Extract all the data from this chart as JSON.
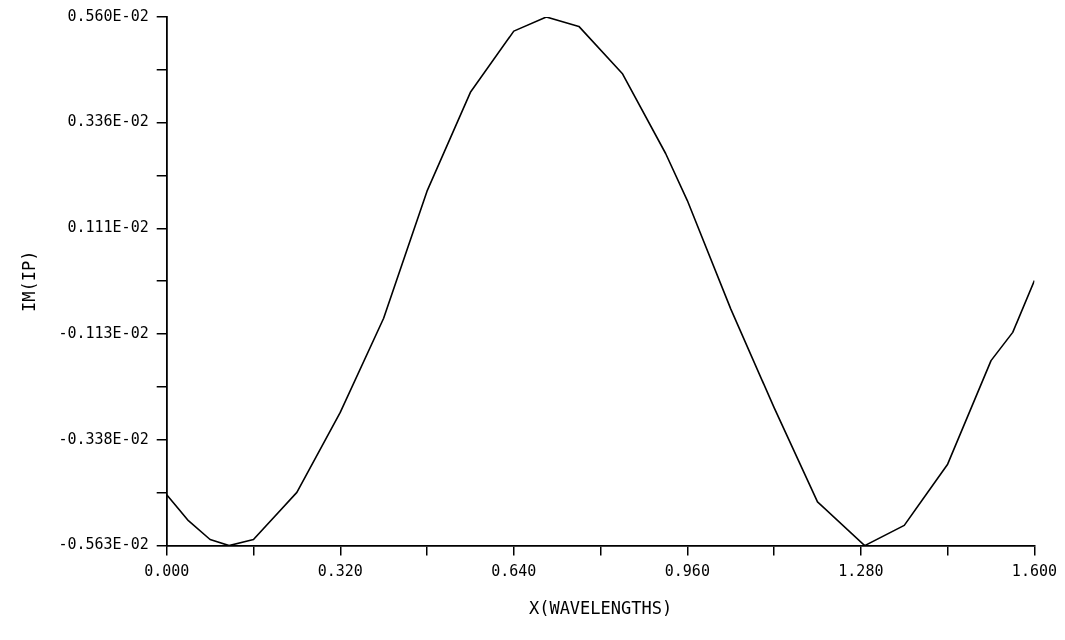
{
  "chart_data": {
    "type": "line",
    "xlabel": "X(WAVELENGTHS)",
    "ylabel": "IM(IP)",
    "x": [
      0,
      0.04,
      0.08,
      0.115,
      0.16,
      0.24,
      0.32,
      0.4,
      0.48,
      0.56,
      0.64,
      0.7,
      0.76,
      0.84,
      0.92,
      0.96,
      1.04,
      1.12,
      1.2,
      1.287,
      1.36,
      1.44,
      1.52,
      1.56,
      1.6
    ],
    "series": [
      {
        "color": "#000000",
        "values": [
          -0.00455,
          -0.0051,
          -0.0055,
          -0.00563,
          -0.0055,
          -0.0045,
          -0.0028,
          -0.0008,
          0.0019,
          0.004,
          0.0053,
          0.0056,
          0.0054,
          0.0044,
          0.0027,
          0.0017,
          -0.0006,
          -0.0027,
          -0.0047,
          -0.00563,
          -0.0052,
          -0.0039,
          -0.0017,
          -0.0011,
          0
        ]
      }
    ],
    "xlim": [
      0,
      1.6
    ],
    "xticks": [
      {
        "value": 0,
        "label": "0.000"
      },
      {
        "value": 0.16,
        "label": null
      },
      {
        "value": 0.32,
        "label": "0.320"
      },
      {
        "value": 0.48,
        "label": null
      },
      {
        "value": 0.64,
        "label": "0.640"
      },
      {
        "value": 0.8,
        "label": null
      },
      {
        "value": 0.96,
        "label": "0.960"
      },
      {
        "value": 1.12,
        "label": null
      },
      {
        "value": 1.28,
        "label": "1.280"
      },
      {
        "value": 1.44,
        "label": null
      },
      {
        "value": 1.6,
        "label": "1.600"
      }
    ],
    "ylim": [
      -0.00563,
      0.0056
    ],
    "yticks": [
      {
        "value": -0.00563,
        "label": "-0.563E-02"
      },
      {
        "value": -0.004505,
        "label": null
      },
      {
        "value": -0.00338,
        "label": "-0.338E-02"
      },
      {
        "value": -0.002255,
        "label": null
      },
      {
        "value": -0.00113,
        "label": "-0.113E-02"
      },
      {
        "value": -1e-05,
        "label": null
      },
      {
        "value": 0.00111,
        "label": "0.111E-02"
      },
      {
        "value": 0.002235,
        "label": null
      },
      {
        "value": 0.00336,
        "label": "0.336E-02"
      },
      {
        "value": 0.00448,
        "label": null
      },
      {
        "value": 0.0056,
        "label": "0.560E-02"
      }
    ],
    "grid": false,
    "legend": false,
    "marker": "none",
    "line_style": "solid"
  }
}
